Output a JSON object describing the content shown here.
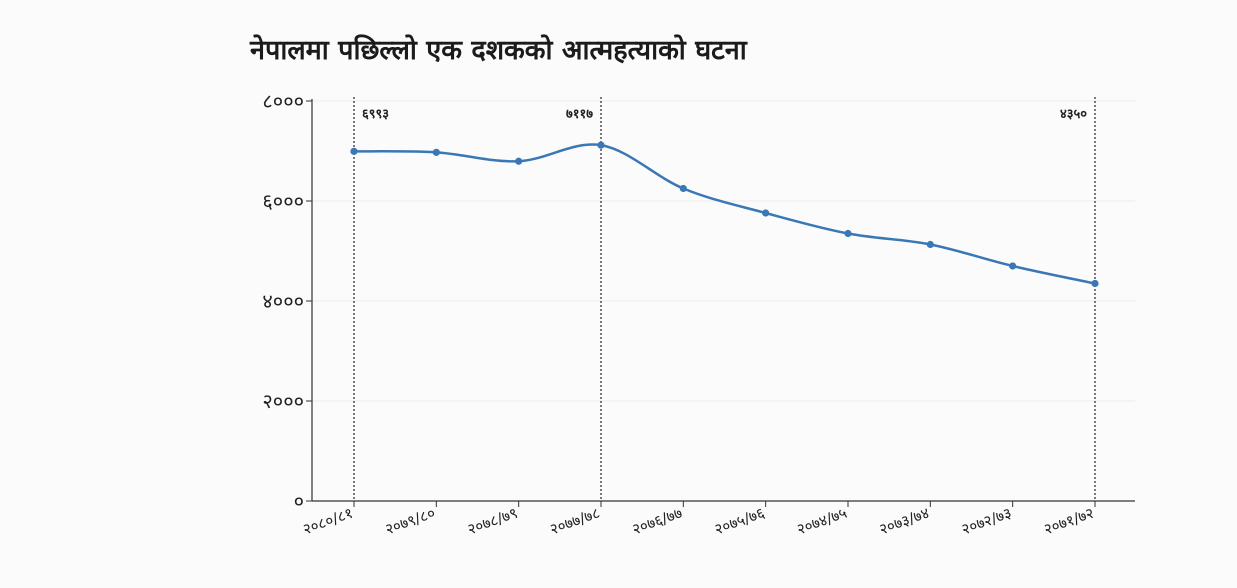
{
  "chart_data": {
    "type": "line",
    "title": "नेपालमा पछिल्लो एक दशकको आत्महत्याको घटना",
    "xlabel": "",
    "ylabel": "",
    "categories": [
      "२०८०/८१",
      "२०७९/८०",
      "२०७८/७९",
      "२०७७/७८",
      "२०७६/७७",
      "२०७५/७६",
      "२०७४/७५",
      "२०७३/७४",
      "२०७२/७३",
      "२०७१/७२"
    ],
    "series": [
      {
        "values": [
          6993,
          6973,
          6795,
          7117,
          6250,
          5760,
          5350,
          5130,
          4700,
          4350
        ]
      }
    ],
    "ylim": [
      0,
      8000
    ],
    "yticks": [
      0,
      2000,
      4000,
      6000,
      8000
    ],
    "ytick_labels": [
      "०",
      "२०००",
      "४०००",
      "६०००",
      "८०००"
    ],
    "grid": true,
    "line_color": "#3a77b5",
    "annotations": [
      {
        "category_index": 0,
        "label": "६९९३"
      },
      {
        "category_index": 3,
        "label": "७११७"
      },
      {
        "category_index": 9,
        "label": "४३५०"
      }
    ]
  }
}
